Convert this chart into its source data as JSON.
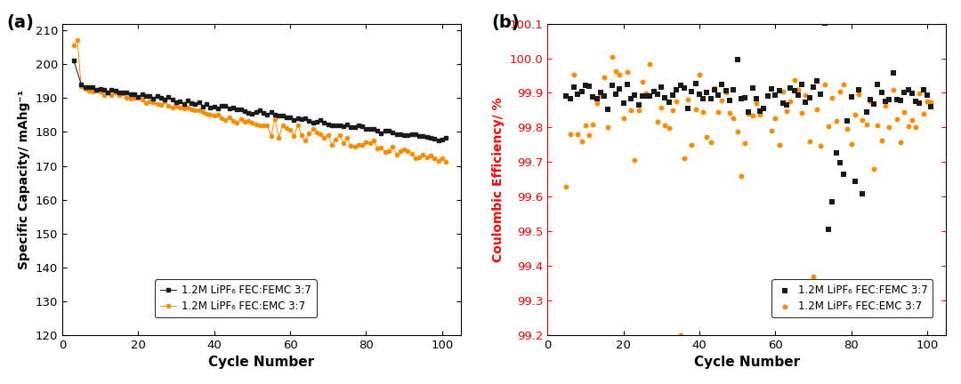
{
  "fig_width": 10.8,
  "fig_height": 4.32,
  "dpi": 100,
  "panel_a": {
    "label": "(a)",
    "xlabel": "Cycle Number",
    "ylabel": "Specific Capacity/ mAhg⁻¹",
    "xlim": [
      0,
      105
    ],
    "ylim": [
      120,
      212
    ],
    "yticks": [
      120,
      130,
      140,
      150,
      160,
      170,
      180,
      190,
      200,
      210
    ],
    "xticks": [
      0,
      20,
      40,
      60,
      80,
      100
    ],
    "color_femc": "#1a1a1a",
    "color_emc": "#FF8C00",
    "legend_labels": [
      "1.2M LiPF₆ FEC:FEMC 3:7",
      "1.2M LiPF₆ FEC:EMC 3:7"
    ]
  },
  "panel_b": {
    "label": "(b)",
    "xlabel": "Cycle Number",
    "ylabel": "Coulombic Efficiency/ %",
    "ylabel_color": "#FF0000",
    "xlim": [
      0,
      105
    ],
    "ylim": [
      99.2,
      100.1
    ],
    "yticks": [
      99.2,
      99.3,
      99.4,
      99.5,
      99.6,
      99.7,
      99.8,
      99.9,
      100.0,
      100.1
    ],
    "xticks": [
      0,
      20,
      40,
      60,
      80,
      100
    ],
    "color_femc": "#1a1a1a",
    "color_emc": "#FF8C00",
    "legend_labels": [
      "1.2M LiPF₆ FEC:FEMC 3:7",
      "1.2M LiPF₆ FEC:EMC 3:7"
    ]
  },
  "bg_color": "#ffffff",
  "spine_color": "#000000"
}
